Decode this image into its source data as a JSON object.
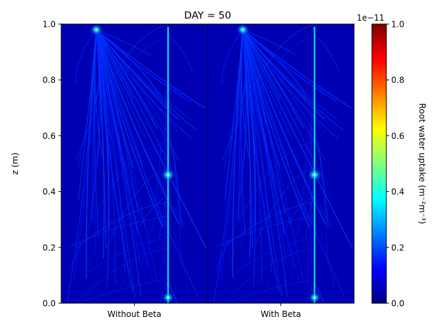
{
  "chart_data": {
    "type": "heatmap",
    "title": "DAY = 50",
    "ylabel": "z (m)",
    "xlabel": "",
    "categories": [
      "Without Beta",
      "With Beta"
    ],
    "ylim": [
      0,
      1
    ],
    "yticks": [
      "0.0",
      "0.2",
      "0.4",
      "0.6",
      "0.8",
      "1.0"
    ],
    "ytick_values": [
      0.0,
      0.2,
      0.4,
      0.6,
      0.8,
      1.0
    ],
    "colorbar": {
      "label": "Root water uptake (m⁻²m⁻³)",
      "scale_label": "1e−11",
      "range": [
        0,
        1
      ],
      "ticks": [
        "0.0",
        "0.2",
        "0.4",
        "0.6",
        "0.8",
        "1.0"
      ],
      "tick_values": [
        0.0,
        0.2,
        0.4,
        0.6,
        0.8,
        1.0
      ],
      "colormap": "jet"
    },
    "grid": false,
    "panels": [
      {
        "name": "Without Beta",
        "background_value": 0.05,
        "taproot": {
          "x_frac": 0.73,
          "value": 0.35
        },
        "hotspots": [
          {
            "x_frac": 0.24,
            "z": 0.98,
            "value": 0.5
          },
          {
            "x_frac": 0.73,
            "z": 0.46,
            "value": 0.6
          },
          {
            "x_frac": 0.73,
            "z": 0.02,
            "value": 0.45
          }
        ]
      },
      {
        "name": "With Beta",
        "background_value": 0.05,
        "taproot": {
          "x_frac": 0.73,
          "value": 0.35
        },
        "hotspots": [
          {
            "x_frac": 0.24,
            "z": 0.98,
            "value": 0.5
          },
          {
            "x_frac": 0.73,
            "z": 0.46,
            "value": 0.6
          },
          {
            "x_frac": 0.73,
            "z": 0.02,
            "value": 0.45
          }
        ]
      }
    ]
  }
}
